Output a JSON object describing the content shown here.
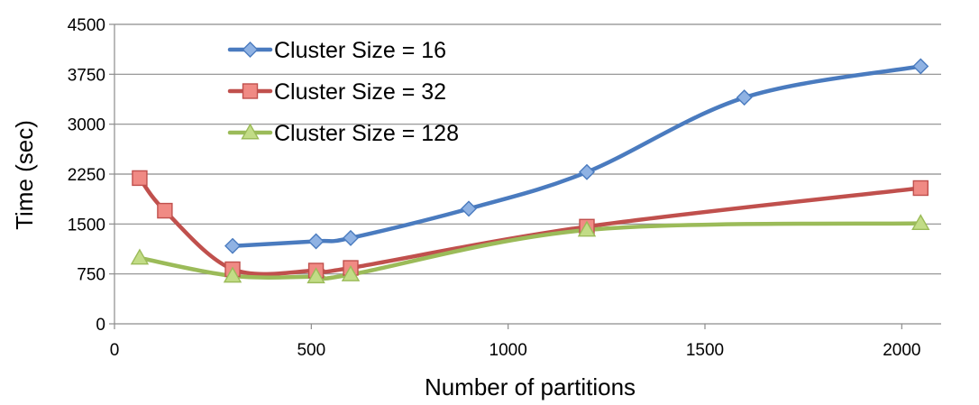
{
  "chart_data": {
    "type": "line",
    "xlabel": "Number of partitions",
    "ylabel": "Time (sec)",
    "xlim": [
      0,
      2100
    ],
    "ylim": [
      0,
      4500
    ],
    "xticks": [
      0,
      500,
      1000,
      1500,
      2000
    ],
    "yticks": [
      0,
      750,
      1500,
      2250,
      3000,
      3750,
      4500
    ],
    "grid": "horizontal",
    "legend_position": "top-left",
    "series": [
      {
        "name": "Cluster Size = 16",
        "color": "#4a7bbf",
        "marker_fill": "#8fb2e3",
        "marker": "diamond",
        "points": [
          [
            300,
            1170
          ],
          [
            512,
            1240
          ],
          [
            600,
            1290
          ],
          [
            900,
            1730
          ],
          [
            1200,
            2280
          ],
          [
            1600,
            3400
          ],
          [
            2048,
            3870
          ]
        ]
      },
      {
        "name": "Cluster Size = 32",
        "color": "#c0504d",
        "marker_fill": "#f08a84",
        "marker": "square",
        "points": [
          [
            64,
            2190
          ],
          [
            128,
            1700
          ],
          [
            300,
            820
          ],
          [
            512,
            800
          ],
          [
            600,
            840
          ],
          [
            1200,
            1460
          ],
          [
            2048,
            2040
          ]
        ]
      },
      {
        "name": "Cluster Size = 128",
        "color": "#9bbb59",
        "marker_fill": "#c2dc86",
        "marker": "triangle",
        "points": [
          [
            64,
            990
          ],
          [
            300,
            720
          ],
          [
            512,
            710
          ],
          [
            600,
            740
          ],
          [
            1200,
            1410
          ],
          [
            2048,
            1510
          ]
        ]
      }
    ]
  }
}
